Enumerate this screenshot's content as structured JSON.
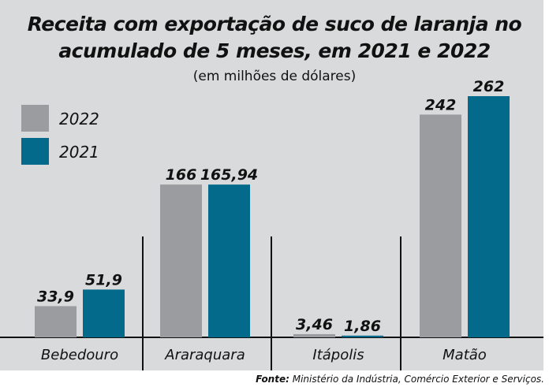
{
  "chart_data": {
    "type": "bar",
    "title": "Receita com exportação de suco de laranja no acumulado de 5 meses, em 2021 e 2022",
    "title_lines": [
      "Receita com exportação de suco de laranja no",
      "acumulado de 5 meses, em 2021 e 2022"
    ],
    "subtitle": "(em milhões de dólares)",
    "categories": [
      "Bebedouro",
      "Araraquara",
      "Itápolis",
      "Matão"
    ],
    "series": [
      {
        "name": "2022",
        "color": "#9b9c9f",
        "values": [
          33.9,
          166,
          3.46,
          242
        ],
        "labels": [
          "33,9",
          "166",
          "3,46",
          "242"
        ]
      },
      {
        "name": "2021",
        "color": "#036a8c",
        "values": [
          51.9,
          165.94,
          1.86,
          262
        ],
        "labels": [
          "51,9",
          "165,94",
          "1,86",
          "262"
        ]
      }
    ],
    "legend_position": "top-left",
    "grid": false,
    "source_label": "Fonte:",
    "source": "Ministério da Indústria, Comércio Exterior e Serviços."
  }
}
